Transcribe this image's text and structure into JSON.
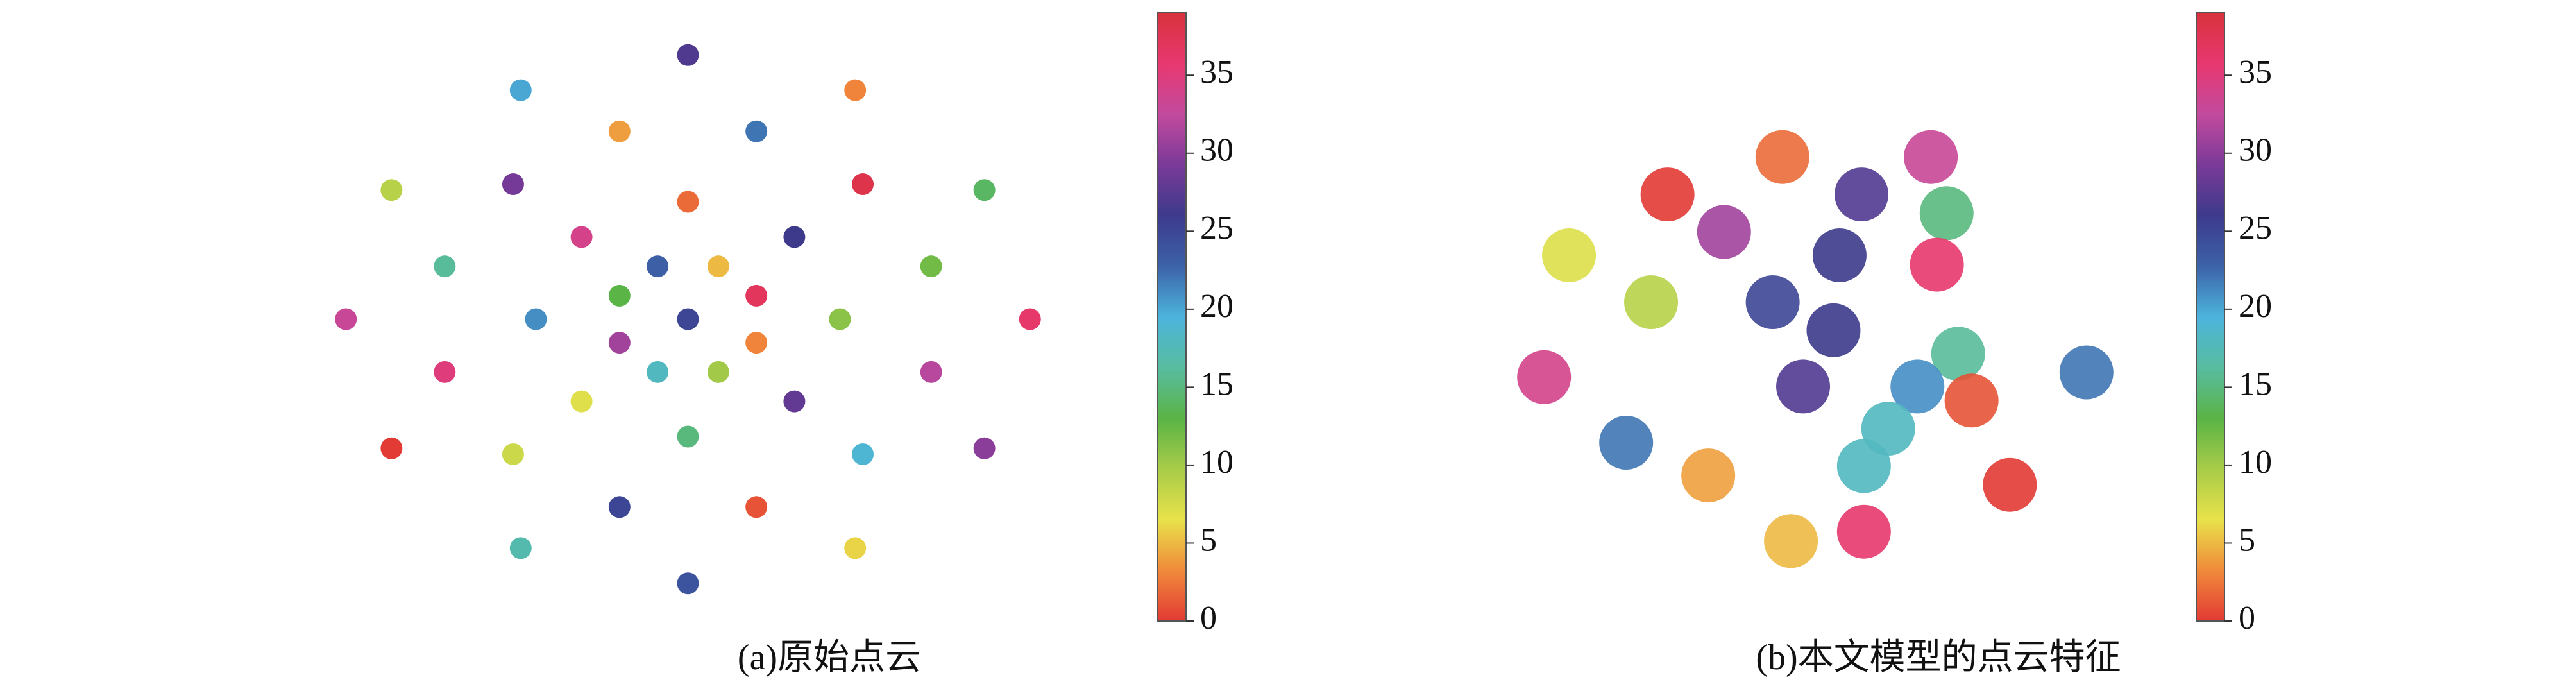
{
  "chart_data": [
    {
      "type": "scatter",
      "caption": "(a)原始点云",
      "xlim": [
        0,
        100
      ],
      "ylim": [
        0,
        100
      ],
      "x": [
        95,
        89,
        72,
        50,
        28,
        11,
        5,
        11,
        28,
        50,
        72,
        89,
        82,
        73,
        59,
        41,
        27,
        18,
        18,
        27,
        41,
        59,
        73,
        82,
        70,
        64,
        50,
        36,
        30,
        36,
        50,
        64,
        59,
        54,
        46,
        41,
        41,
        46,
        54,
        59,
        50
      ],
      "y": [
        50,
        72,
        89,
        95,
        89,
        72,
        50,
        28,
        11,
        5,
        11,
        28,
        59,
        73,
        82,
        82,
        73,
        59,
        41,
        27,
        18,
        18,
        27,
        41,
        50,
        64,
        70,
        64,
        50,
        36,
        30,
        36,
        54,
        59,
        59,
        54,
        46,
        41,
        41,
        46,
        50
      ],
      "values": [
        36,
        14,
        3,
        27,
        20,
        9,
        33,
        0,
        17,
        24,
        6,
        30,
        12,
        38,
        22,
        4,
        29,
        16,
        35,
        8,
        25,
        1,
        19,
        32,
        11,
        26,
        2,
        34,
        21,
        7,
        15,
        28,
        37,
        5,
        23,
        13,
        31,
        18,
        10,
        3,
        25
      ],
      "colorbar": {
        "lim": [
          0,
          39
        ],
        "ticks": [
          0,
          5,
          10,
          15,
          20,
          25,
          30,
          35
        ],
        "colormap": [
          "#e23a34",
          "#f08a3a",
          "#e8e24a",
          "#a8cc48",
          "#5ab446",
          "#58bca0",
          "#4cb4dc",
          "#3c62a8",
          "#3d3a8c",
          "#7a3a98",
          "#c24a9e",
          "#e83870",
          "#d8323c"
        ]
      }
    },
    {
      "type": "scatter",
      "caption": "(b)本文模型的点云特征",
      "xlim": [
        0,
        100
      ],
      "ylim": [
        0,
        100
      ],
      "x": [
        44.6,
        25.7,
        35,
        57.6,
        69,
        71.6,
        9.5,
        23,
        54,
        43,
        70,
        53,
        5.4,
        48,
        73.5,
        66.8,
        75.7,
        94.6,
        18.9,
        32.4,
        58,
        62,
        82,
        46,
        58
      ],
      "y": [
        91,
        83,
        75,
        83,
        91,
        79,
        70,
        60,
        70,
        60,
        68,
        54,
        44,
        42,
        49,
        42,
        39,
        45,
        30,
        23,
        25,
        33,
        21,
        9,
        11
      ],
      "values": [
        2,
        0,
        31,
        27,
        33,
        15,
        7,
        9,
        26,
        25,
        36,
        26,
        34,
        27,
        16,
        21,
        1,
        22,
        22,
        4,
        18,
        18,
        0,
        5,
        36
      ],
      "colorbar": {
        "lim": [
          0,
          39
        ],
        "ticks": [
          0,
          5,
          10,
          15,
          20,
          25,
          30,
          35
        ],
        "colormap": [
          "#e23a34",
          "#f08a3a",
          "#e8e24a",
          "#a8cc48",
          "#5ab446",
          "#58bca0",
          "#4cb4dc",
          "#3c62a8",
          "#3d3a8c",
          "#7a3a98",
          "#c24a9e",
          "#e83870",
          "#d8323c"
        ]
      }
    }
  ]
}
